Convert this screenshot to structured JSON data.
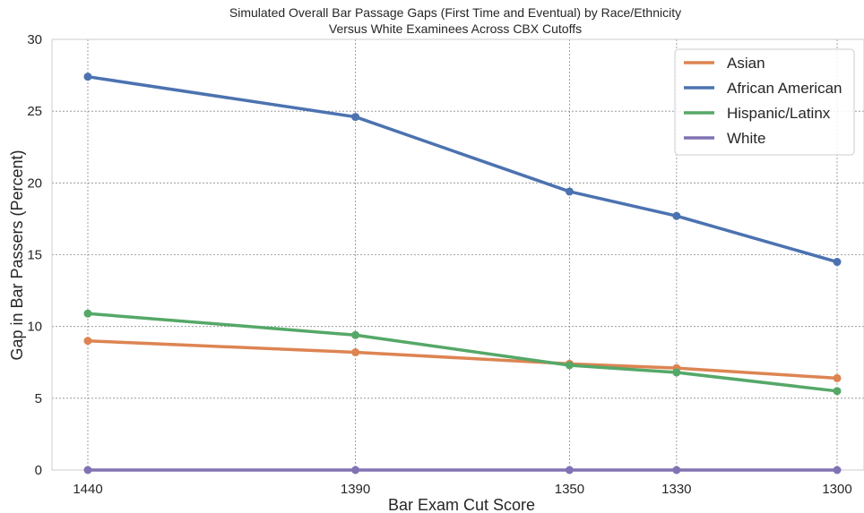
{
  "chart_data": {
    "type": "line",
    "title": "Simulated Overall Bar Passage Gaps (First Time and Eventual) by Race/Ethnicity",
    "subtitle": "Versus White Examinees Across CBX Cutoffs",
    "xlabel": "Bar Exam Cut Score",
    "ylabel": "Gap in Bar Passers (Percent)",
    "x": [
      1440,
      1390,
      1350,
      1330,
      1300
    ],
    "x_reversed": true,
    "xticks": [
      "1440",
      "1390",
      "1350",
      "1330",
      "1300"
    ],
    "ylim": [
      0,
      30
    ],
    "yticks": [
      "0",
      "5",
      "10",
      "15",
      "20",
      "25",
      "30"
    ],
    "grid": true,
    "legend_position": "top-right",
    "series": [
      {
        "name": "Asian",
        "color": "#dd8452",
        "values": [
          9.0,
          8.2,
          7.4,
          7.1,
          6.4
        ]
      },
      {
        "name": "African American",
        "color": "#4c72b0",
        "values": [
          27.4,
          24.6,
          19.4,
          17.7,
          14.5
        ]
      },
      {
        "name": "Hispanic/Latinx",
        "color": "#55a868",
        "values": [
          10.9,
          9.4,
          7.3,
          6.8,
          5.5
        ]
      },
      {
        "name": "White",
        "color": "#8172b3",
        "values": [
          0,
          0,
          0,
          0,
          0
        ]
      }
    ]
  }
}
